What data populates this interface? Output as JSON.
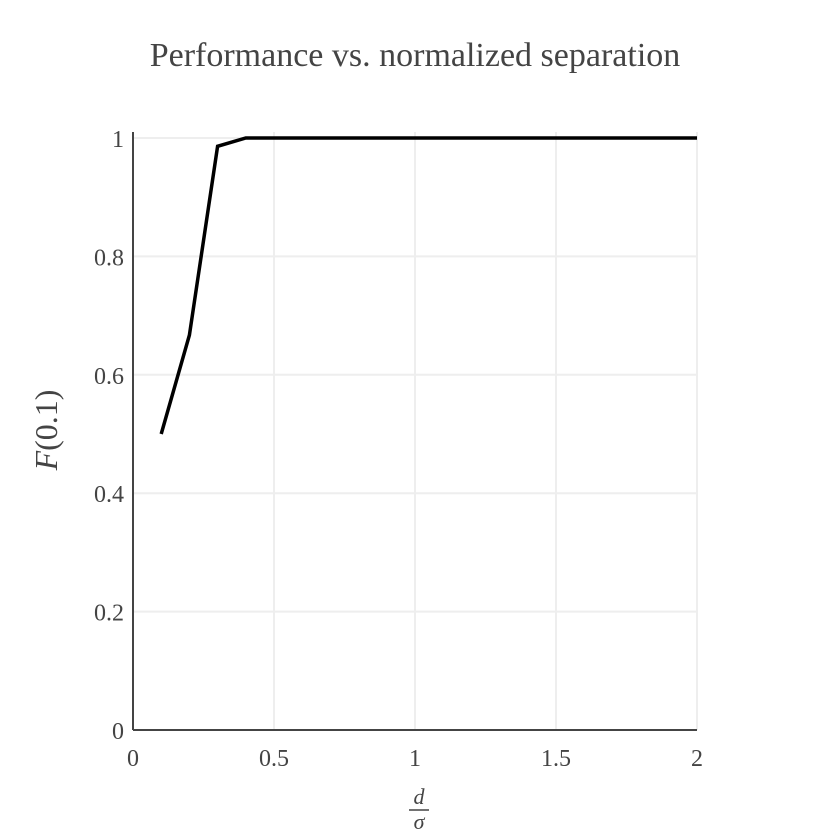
{
  "chart_data": {
    "type": "line",
    "title": "Performance vs. normalized separation",
    "ylabel": {
      "italic": "F",
      "rest": "(0.1)"
    },
    "xlabel": {
      "numerator": "d",
      "denominator": "σ"
    },
    "xlim": [
      0,
      2
    ],
    "ylim": [
      0,
      1
    ],
    "x_ticks": [
      0,
      0.5,
      1,
      1.5,
      2
    ],
    "x_tick_labels": [
      "0",
      "0.5",
      "1",
      "1.5",
      "2"
    ],
    "y_ticks": [
      0,
      0.2,
      0.4,
      0.6,
      0.8,
      1
    ],
    "y_tick_labels": [
      "0",
      "0.2",
      "0.4",
      "0.6",
      "0.8",
      "1"
    ],
    "grid": true,
    "line_color": "#000000",
    "series": [
      {
        "x": [
          0.1,
          0.2,
          0.3,
          0.4,
          0.5,
          0.6,
          0.7,
          0.8,
          0.9,
          1.0,
          1.1,
          1.2,
          1.3,
          1.4,
          1.5,
          1.6,
          1.7,
          1.8,
          1.9,
          2.0
        ],
        "y": [
          0.5,
          0.667,
          0.986,
          1,
          1,
          1,
          1,
          1,
          1,
          1,
          1,
          1,
          1,
          1,
          1,
          1,
          1,
          1,
          1,
          1
        ]
      }
    ]
  }
}
